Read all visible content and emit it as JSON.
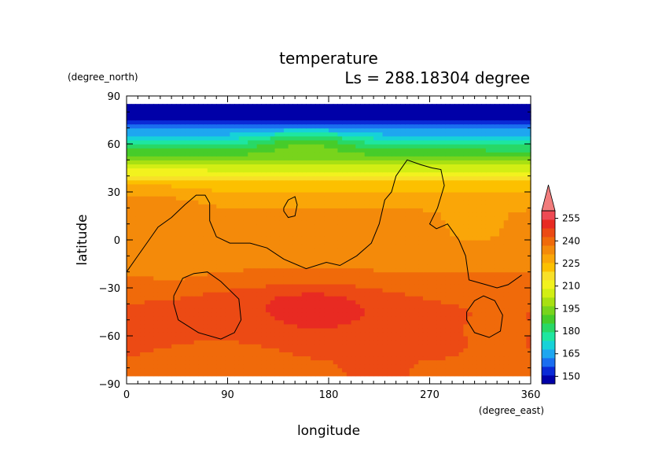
{
  "chart_data": {
    "type": "heatmap",
    "title": "temperature",
    "subtitle": "Ls = 288.18304 degree",
    "xlabel": "longitude",
    "ylabel": "latitude",
    "x_unit": "(degree_east)",
    "y_unit": "(degree_north)",
    "xlim": [
      0,
      360
    ],
    "ylim": [
      -90,
      90
    ],
    "x_ticks": [
      "0",
      "90",
      "180",
      "270",
      "360"
    ],
    "y_ticks": [
      "90",
      "60",
      "30",
      "0",
      "−30",
      "−60",
      "−90"
    ],
    "x_tick_values": [
      0,
      90,
      180,
      270,
      360
    ],
    "y_tick_values": [
      90,
      60,
      30,
      0,
      -30,
      -60,
      -90
    ],
    "data_lat_range": [
      -85,
      85
    ],
    "colorbar": {
      "labels": [
        "255",
        "240",
        "225",
        "210",
        "195",
        "180",
        "165",
        "150"
      ],
      "label_values": [
        255,
        240,
        225,
        210,
        195,
        180,
        165,
        150
      ],
      "min": 145,
      "max": 260,
      "step": 5,
      "colors": [
        "#0000a8",
        "#0a2ad6",
        "#1a6ef0",
        "#1ea6f0",
        "#16d2d8",
        "#1ee6a0",
        "#28d866",
        "#46cc2a",
        "#78d41c",
        "#a8e012",
        "#d2ee14",
        "#f2f21e",
        "#f8e028",
        "#fcc000",
        "#faa608",
        "#f48a0a",
        "#f06a0a",
        "#ec4a14",
        "#e82a22",
        "#ee4a54"
      ],
      "extend_color": "#f27c7c"
    },
    "grid": "off",
    "legend": "colorbar-right",
    "values_description": "temperature in K on a lat/lon grid",
    "lat_profile": {
      "lat": [
        -85,
        -75,
        -65,
        -55,
        -45,
        -35,
        -25,
        -15,
        -5,
        5,
        15,
        25,
        35,
        45,
        55,
        60,
        65,
        70,
        75,
        85
      ],
      "temp": [
        230,
        230,
        231,
        231,
        231,
        229,
        226,
        224,
        223,
        222,
        221,
        219,
        212,
        198,
        182,
        174,
        166,
        158,
        148,
        145
      ]
    },
    "anomalies": [
      {
        "lon": 170,
        "lat": -45,
        "dlon": 55,
        "dlat": 16,
        "amp": 6
      },
      {
        "lon": 150,
        "lat": -35,
        "dlon": 90,
        "dlat": 10,
        "amp": 3
      },
      {
        "lon": 230,
        "lat": 0,
        "dlon": 25,
        "dlat": 10,
        "amp": -2
      },
      {
        "lon": 310,
        "lat": 5,
        "dlon": 35,
        "dlat": 15,
        "amp": -3
      },
      {
        "lon": 160,
        "lat": 62,
        "dlon": 45,
        "dlat": 8,
        "amp": 12
      },
      {
        "lon": 40,
        "lat": -15,
        "dlon": 30,
        "dlat": 12,
        "amp": -2
      },
      {
        "lon": 20,
        "lat": 30,
        "dlon": 40,
        "dlat": 15,
        "amp": 3
      },
      {
        "lon": 90,
        "lat": -70,
        "dlon": 60,
        "dlat": 10,
        "amp": -2
      },
      {
        "lon": 330,
        "lat": -55,
        "dlon": 35,
        "dlat": 20,
        "amp": -2
      }
    ],
    "contours": [
      {
        "name": "contour-western-coastline",
        "points": [
          [
            0,
            -20
          ],
          [
            8,
            -12
          ],
          [
            20,
            0
          ],
          [
            28,
            8
          ],
          [
            40,
            14
          ],
          [
            52,
            22
          ],
          [
            62,
            28
          ],
          [
            70,
            28
          ],
          [
            74,
            23
          ],
          [
            74,
            12
          ],
          [
            80,
            2
          ],
          [
            92,
            -2
          ],
          [
            110,
            -2
          ],
          [
            125,
            -5
          ],
          [
            140,
            -12
          ],
          [
            160,
            -18
          ],
          [
            178,
            -14
          ],
          [
            190,
            -16
          ],
          [
            205,
            -10
          ],
          [
            218,
            -2
          ],
          [
            225,
            10
          ],
          [
            230,
            25
          ],
          [
            236,
            30
          ],
          [
            240,
            40
          ],
          [
            250,
            50
          ],
          [
            262,
            47
          ],
          [
            272,
            45
          ],
          [
            280,
            44
          ],
          [
            283,
            34
          ],
          [
            277,
            20
          ],
          [
            270,
            10
          ],
          [
            276,
            7
          ],
          [
            286,
            10
          ],
          [
            296,
            0
          ],
          [
            302,
            -10
          ],
          [
            305,
            -25
          ],
          [
            320,
            -28
          ],
          [
            330,
            -30
          ],
          [
            340,
            -28
          ],
          [
            352,
            -22
          ]
        ]
      },
      {
        "name": "contour-small-ring",
        "points": [
          [
            140,
            20
          ],
          [
            144,
            25
          ],
          [
            150,
            27
          ],
          [
            152,
            22
          ],
          [
            150,
            15
          ],
          [
            144,
            14
          ],
          [
            140,
            18
          ],
          [
            140,
            20
          ]
        ]
      },
      {
        "name": "contour-ring-southwest",
        "points": [
          [
            42,
            -35
          ],
          [
            50,
            -24
          ],
          [
            60,
            -21
          ],
          [
            72,
            -20
          ],
          [
            84,
            -26
          ],
          [
            100,
            -37
          ],
          [
            102,
            -50
          ],
          [
            96,
            -58
          ],
          [
            84,
            -62
          ],
          [
            64,
            -58
          ],
          [
            46,
            -50
          ],
          [
            42,
            -40
          ],
          [
            42,
            -35
          ]
        ]
      },
      {
        "name": "contour-ring-southeast",
        "points": [
          [
            303,
            -45
          ],
          [
            310,
            -38
          ],
          [
            318,
            -35
          ],
          [
            328,
            -38
          ],
          [
            335,
            -47
          ],
          [
            333,
            -57
          ],
          [
            323,
            -61
          ],
          [
            310,
            -58
          ],
          [
            303,
            -50
          ],
          [
            303,
            -45
          ]
        ]
      }
    ]
  }
}
